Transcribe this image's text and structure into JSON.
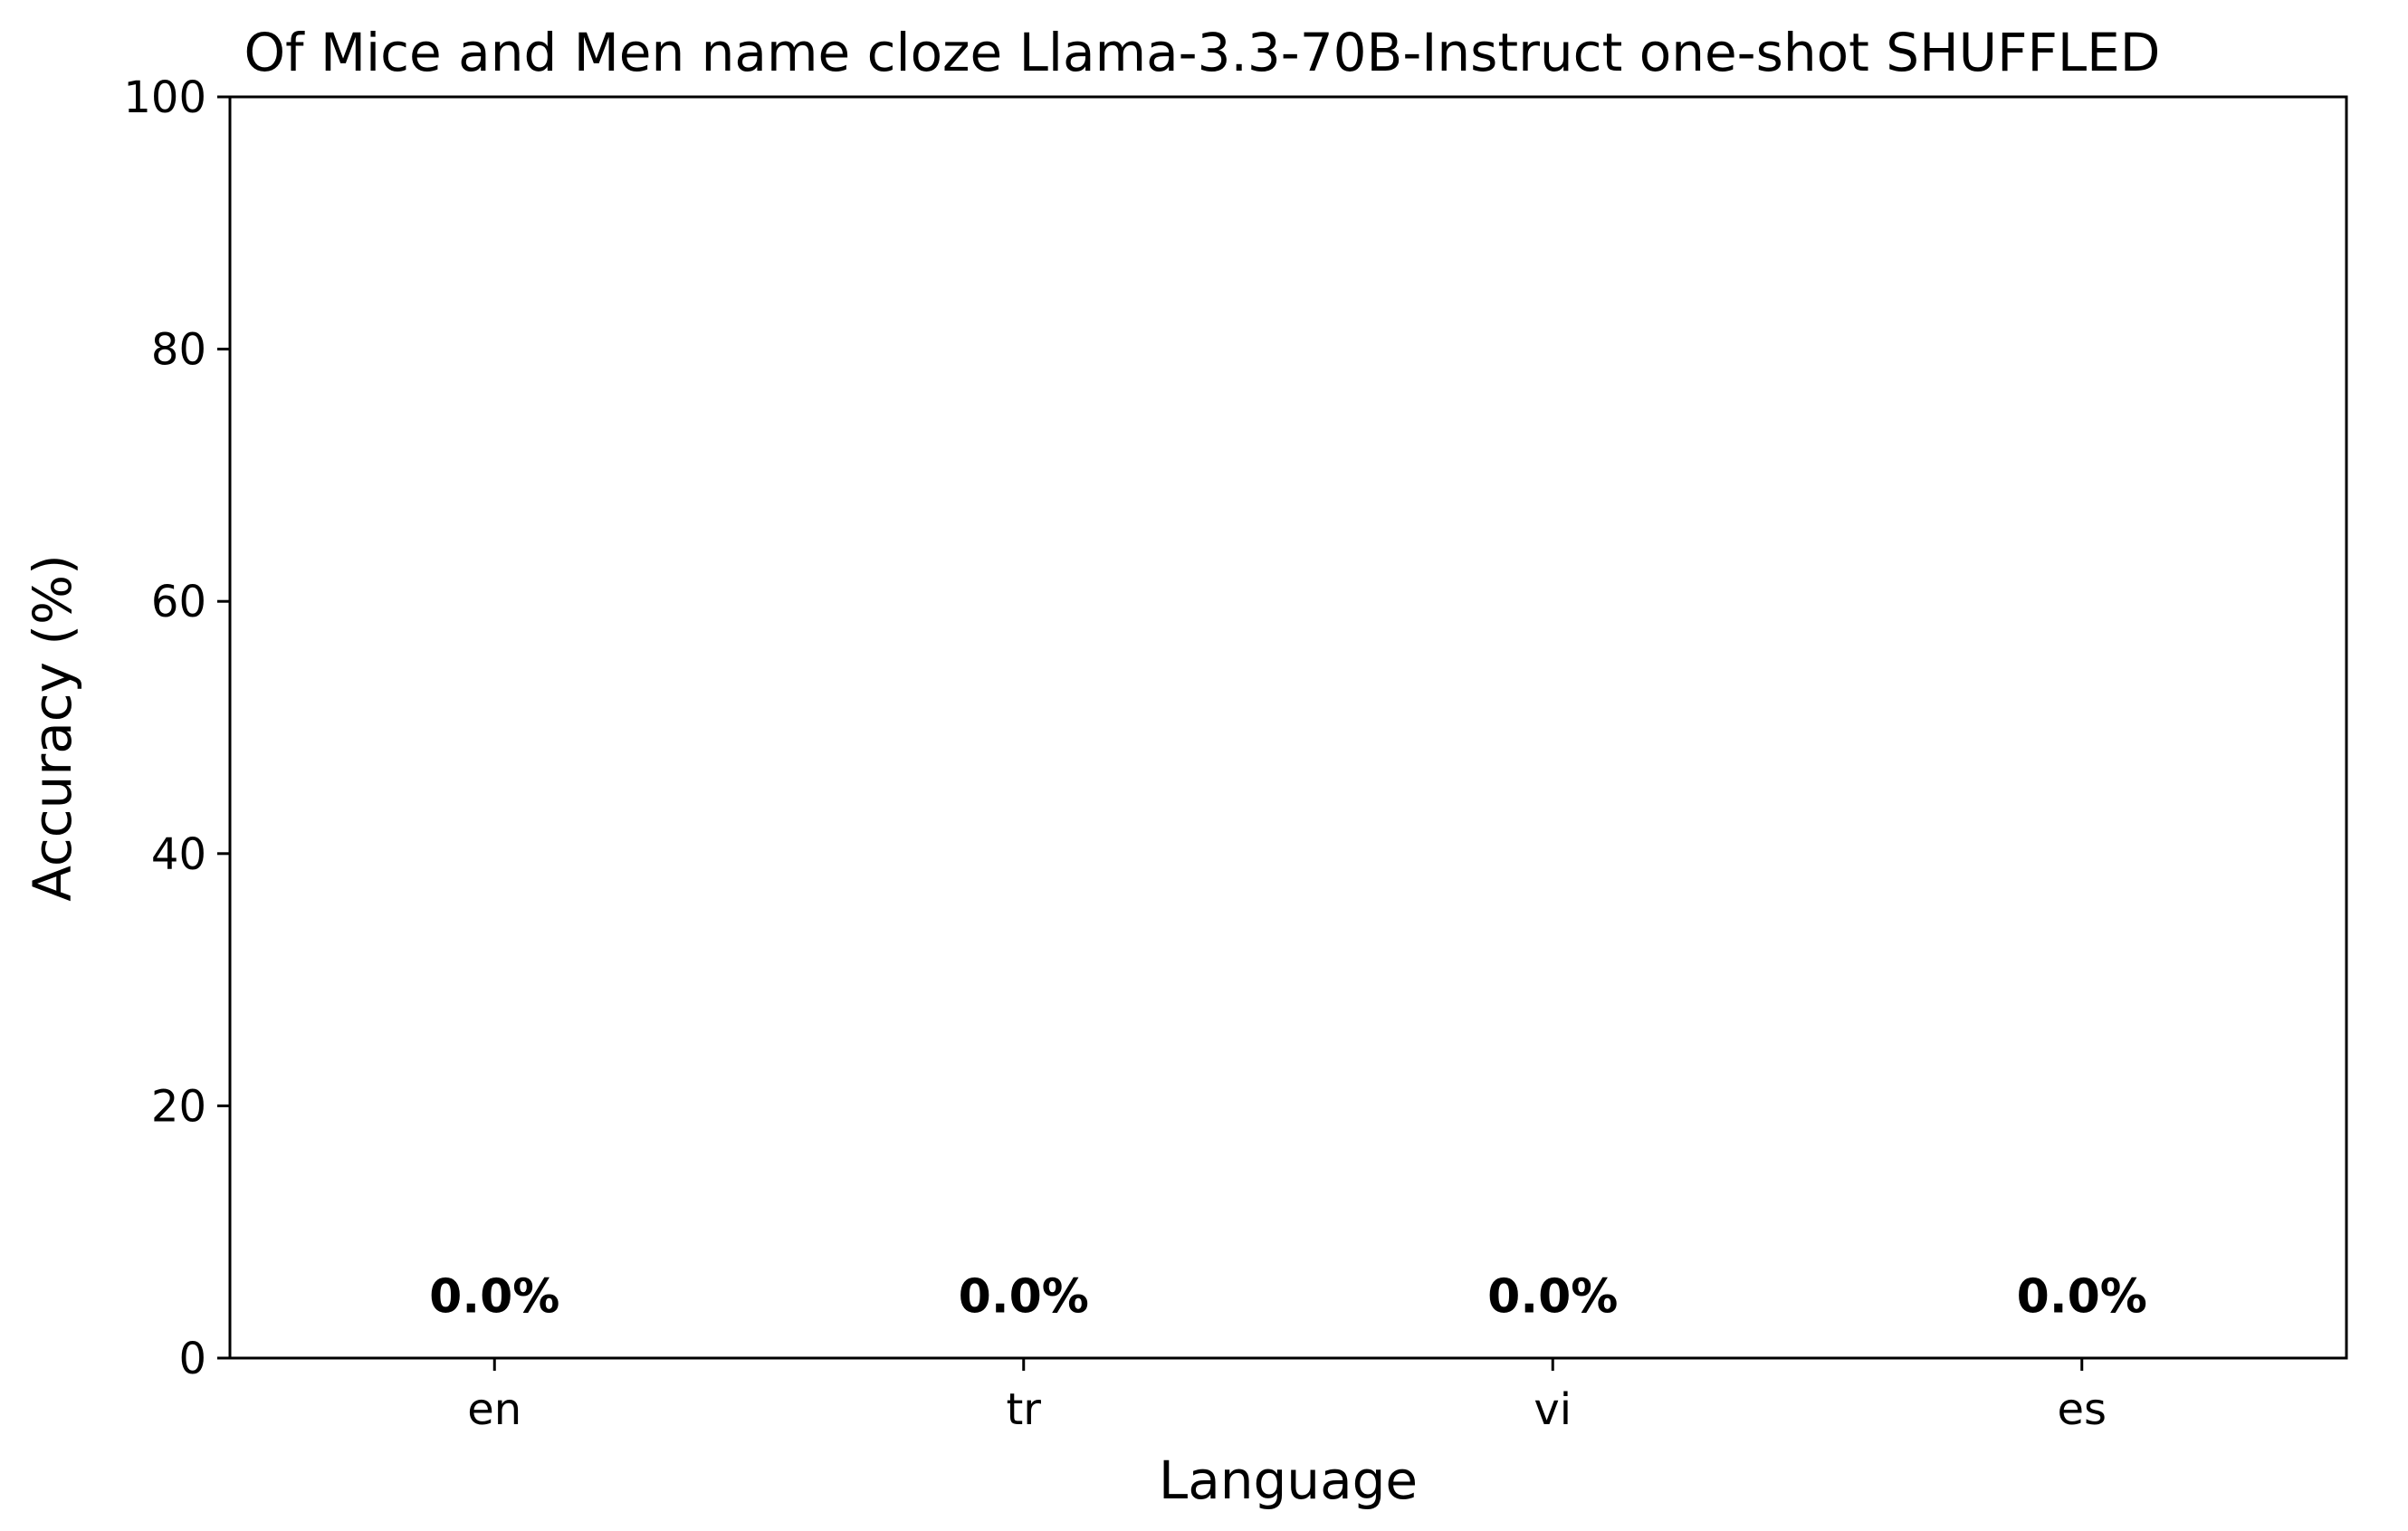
{
  "chart_data": {
    "type": "bar",
    "title": "Of Mice and Men name cloze Llama-3.3-70B-Instruct one-shot SHUFFLED",
    "xlabel": "Language",
    "ylabel": "Accuracy (%)",
    "categories": [
      "en",
      "tr",
      "vi",
      "es"
    ],
    "values": [
      0.0,
      0.0,
      0.0,
      0.0
    ],
    "data_labels": [
      "0.0%",
      "0.0%",
      "0.0%",
      "0.0%"
    ],
    "ylim": [
      0,
      100
    ],
    "yticks": [
      0,
      20,
      40,
      60,
      80,
      100
    ],
    "ytick_labels": [
      "0",
      "20",
      "40",
      "60",
      "80",
      "100"
    ],
    "grid": false,
    "bar_color": "#1f77b4"
  }
}
